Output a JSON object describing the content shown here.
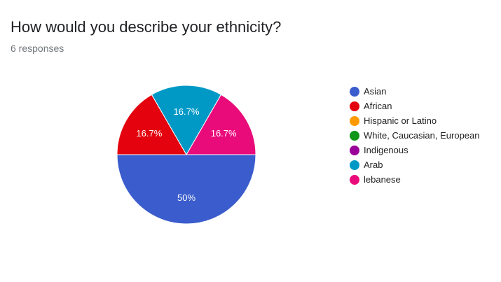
{
  "question": {
    "title": "How would you describe your ethnicity?",
    "responses_label": "6 responses"
  },
  "chart_data": {
    "type": "pie",
    "title": "How would you describe your ethnicity?",
    "categories": [
      "Asian",
      "African",
      "Hispanic or Latino",
      "White, Caucasian, European",
      "Indigenous",
      "Arab",
      "lebanese"
    ],
    "values": [
      3,
      1,
      0,
      0,
      0,
      1,
      1
    ],
    "percent_labels": [
      "50%",
      "16.7%",
      "",
      "",
      "",
      "16.7%",
      "16.7%"
    ],
    "colors": [
      "#3a5ccc",
      "#e3020d",
      "#ff9900",
      "#109618",
      "#990099",
      "#0099c6",
      "#ea0b7b"
    ],
    "legend_position": "right"
  }
}
